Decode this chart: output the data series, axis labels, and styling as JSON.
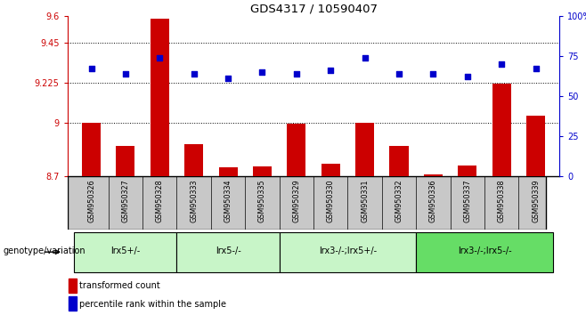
{
  "title": "GDS4317 / 10590407",
  "samples": [
    "GSM950326",
    "GSM950327",
    "GSM950328",
    "GSM950333",
    "GSM950334",
    "GSM950335",
    "GSM950329",
    "GSM950330",
    "GSM950331",
    "GSM950332",
    "GSM950336",
    "GSM950337",
    "GSM950338",
    "GSM950339"
  ],
  "bar_values": [
    9.0,
    8.87,
    9.585,
    8.88,
    8.75,
    8.755,
    8.995,
    8.77,
    9.0,
    8.87,
    8.71,
    8.76,
    9.22,
    9.04
  ],
  "scatter_values": [
    67,
    64,
    74,
    64,
    61,
    65,
    64,
    66,
    74,
    64,
    64,
    62,
    70,
    67
  ],
  "ylim_left": [
    8.7,
    9.6
  ],
  "ylim_right": [
    0,
    100
  ],
  "yticks_left": [
    8.7,
    9.0,
    9.225,
    9.45,
    9.6
  ],
  "ytick_labels_left": [
    "8.7",
    "9",
    "9.225",
    "9.45",
    "9.6"
  ],
  "yticks_right": [
    0,
    25,
    50,
    75,
    100
  ],
  "ytick_labels_right": [
    "0",
    "25",
    "50",
    "75",
    "100%"
  ],
  "hlines": [
    9.0,
    9.225,
    9.45
  ],
  "bar_color": "#cc0000",
  "scatter_color": "#0000cc",
  "groups": [
    {
      "label": "lrx5+/-",
      "start": 0,
      "end": 3
    },
    {
      "label": "lrx5-/-",
      "start": 3,
      "end": 6
    },
    {
      "label": "lrx3-/-;lrx5+/-",
      "start": 6,
      "end": 10
    },
    {
      "label": "lrx3-/-;lrx5-/-",
      "start": 10,
      "end": 14
    }
  ],
  "group_colors": [
    "#c8f5c8",
    "#c8f5c8",
    "#c8f5c8",
    "#66dd66"
  ],
  "legend_bar_label": "transformed count",
  "legend_scatter_label": "percentile rank within the sample",
  "genotype_label": "genotype/variation",
  "background_color": "#ffffff",
  "tick_area_color": "#c8c8c8",
  "tick_area_line_color": "#888888"
}
